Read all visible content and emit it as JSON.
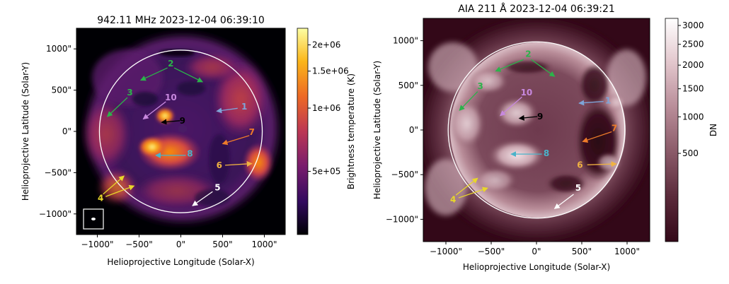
{
  "chart_data": [
    {
      "type": "heatmap",
      "title": "942.11 MHz 2023-12-04 06:39:10",
      "xlabel": "Helioprojective Longitude (Solar-X)",
      "ylabel": "Helioprojective Latitude (Solar-Y)",
      "xlim": [
        -1250,
        1250
      ],
      "ylim": [
        -1250,
        1250
      ],
      "xticks": [
        -1000,
        -500,
        0,
        500,
        1000
      ],
      "xtick_labels": [
        "−1000\"",
        "−500\"",
        "0\"",
        "500\"",
        "1000\""
      ],
      "yticks": [
        1000,
        500,
        0,
        -500,
        -1000
      ],
      "ytick_labels": [
        "1000\"",
        "500\"",
        "0\"",
        "−500\"",
        "−1000\""
      ],
      "colorbar": {
        "label": "Brightness temperature (K)",
        "scale": "log",
        "range": [
          250000,
          2400000
        ],
        "ticks": [
          2000000,
          1500000,
          1000000,
          500000
        ],
        "tick_labels": [
          "2e+06",
          "1.5e+06",
          "1e+06",
          "5e+05"
        ],
        "colors": [
          "#000004",
          "#320a5e",
          "#781c6d",
          "#bc3754",
          "#ed6925",
          "#fbb61a",
          "#fcffa4"
        ]
      },
      "limb_radius_arcsec": 975,
      "annotations": [
        {
          "label": "1",
          "color": "#7ea4d8",
          "text_xy": [
            760,
            300
          ],
          "arrows": [
            {
              "from": [
                680,
                280
              ],
              "to": [
                430,
                245
              ]
            }
          ]
        },
        {
          "label": "2",
          "color": "#2bb34a",
          "text_xy": [
            -120,
            820
          ],
          "arrows": [
            {
              "from": [
                -160,
                770
              ],
              "to": [
                -480,
                620
              ]
            },
            {
              "from": [
                -80,
                770
              ],
              "to": [
                260,
                600
              ]
            }
          ]
        },
        {
          "label": "3",
          "color": "#2bb34a",
          "text_xy": [
            -610,
            470
          ],
          "arrows": [
            {
              "from": [
                -640,
                410
              ],
              "to": [
                -880,
                180
              ]
            }
          ]
        },
        {
          "label": "4",
          "color": "#e8d72a",
          "text_xy": [
            -960,
            -810
          ],
          "arrows": [
            {
              "from": [
                -930,
                -760
              ],
              "to": [
                -680,
                -540
              ]
            },
            {
              "from": [
                -900,
                -790
              ],
              "to": [
                -560,
                -660
              ]
            }
          ]
        },
        {
          "label": "5",
          "color": "#ffffff",
          "text_xy": [
            440,
            -680
          ],
          "arrows": [
            {
              "from": [
                380,
                -730
              ],
              "to": [
                140,
                -900
              ]
            }
          ]
        },
        {
          "label": "6",
          "color": "#f0b341",
          "text_xy": [
            460,
            -410
          ],
          "arrows": [
            {
              "from": [
                530,
                -410
              ],
              "to": [
                850,
                -390
              ]
            }
          ]
        },
        {
          "label": "7",
          "color": "#ee7b2a",
          "text_xy": [
            850,
            -10
          ],
          "arrows": [
            {
              "from": [
                820,
                -50
              ],
              "to": [
                500,
                -150
              ]
            }
          ]
        },
        {
          "label": "8",
          "color": "#4ab3c9",
          "text_xy": [
            110,
            -270
          ],
          "arrows": [
            {
              "from": [
                60,
                -290
              ],
              "to": [
                -300,
                -290
              ]
            }
          ]
        },
        {
          "label": "9",
          "color": "#000000",
          "text_xy": [
            20,
            130
          ],
          "arrows": [
            {
              "from": [
                -10,
                130
              ],
              "to": [
                -230,
                110
              ]
            }
          ]
        },
        {
          "label": "10",
          "color": "#c788de",
          "text_xy": [
            -120,
            410
          ],
          "arrows": [
            {
              "from": [
                -180,
                360
              ],
              "to": [
                -450,
                150
              ]
            }
          ]
        }
      ]
    },
    {
      "type": "heatmap",
      "title": "AIA 211 Å 2023-12-04 06:39:21",
      "xlabel": "Helioprojective Longitude (Solar-X)",
      "ylabel": "Helioprojective Latitude (Solar-Y)",
      "xlim": [
        -1250,
        1250
      ],
      "ylim": [
        -1250,
        1250
      ],
      "xticks": [
        -1000,
        -500,
        0,
        500,
        1000
      ],
      "xtick_labels": [
        "−1000\"",
        "−500\"",
        "0\"",
        "500\"",
        "1000\""
      ],
      "yticks": [
        1000,
        500,
        0,
        -500,
        -1000
      ],
      "ytick_labels": [
        "1000\"",
        "500\"",
        "0\"",
        "−500\"",
        "−1000\""
      ],
      "colorbar": {
        "label": "DN",
        "scale": "sqrt",
        "range": [
          0,
          3200
        ],
        "ticks": [
          3000,
          2500,
          2000,
          1500,
          1000,
          500
        ],
        "tick_labels": [
          "3000",
          "2500",
          "2000",
          "1500",
          "1000",
          "500"
        ],
        "colors": [
          "#330818",
          "#5a2a3a",
          "#8a5a68",
          "#b88c98",
          "#e2c6cc",
          "#ffffff"
        ]
      },
      "limb_radius_arcsec": 975,
      "annotations": [
        {
          "label": "1",
          "color": "#7ea4d8",
          "text_xy": [
            790,
            330
          ],
          "arrows": [
            {
              "from": [
                740,
                320
              ],
              "to": [
                470,
                300
              ]
            }
          ]
        },
        {
          "label": "2",
          "color": "#2bb34a",
          "text_xy": [
            -90,
            850
          ],
          "arrows": [
            {
              "from": [
                -140,
                790
              ],
              "to": [
                -450,
                660
              ]
            },
            {
              "from": [
                -60,
                790
              ],
              "to": [
                200,
                600
              ]
            }
          ]
        },
        {
          "label": "3",
          "color": "#2bb34a",
          "text_xy": [
            -620,
            490
          ],
          "arrows": [
            {
              "from": [
                -650,
                430
              ],
              "to": [
                -850,
                220
              ]
            }
          ]
        },
        {
          "label": "4",
          "color": "#e8d72a",
          "text_xy": [
            -920,
            -780
          ],
          "arrows": [
            {
              "from": [
                -890,
                -730
              ],
              "to": [
                -650,
                -540
              ]
            },
            {
              "from": [
                -860,
                -760
              ],
              "to": [
                -540,
                -650
              ]
            }
          ]
        },
        {
          "label": "5",
          "color": "#ffffff",
          "text_xy": [
            460,
            -650
          ],
          "arrows": [
            {
              "from": [
                410,
                -720
              ],
              "to": [
                200,
                -880
              ]
            }
          ]
        },
        {
          "label": "6",
          "color": "#f0b341",
          "text_xy": [
            480,
            -390
          ],
          "arrows": [
            {
              "from": [
                560,
                -390
              ],
              "to": [
                880,
                -380
              ]
            }
          ]
        },
        {
          "label": "7",
          "color": "#ee7b2a",
          "text_xy": [
            860,
            20
          ],
          "arrows": [
            {
              "from": [
                830,
                -20
              ],
              "to": [
                510,
                -130
              ]
            }
          ]
        },
        {
          "label": "8",
          "color": "#4ab3c9",
          "text_xy": [
            110,
            -260
          ],
          "arrows": [
            {
              "from": [
                60,
                -270
              ],
              "to": [
                -280,
                -270
              ]
            }
          ]
        },
        {
          "label": "9",
          "color": "#000000",
          "text_xy": [
            40,
            150
          ],
          "arrows": [
            {
              "from": [
                10,
                150
              ],
              "to": [
                -190,
                130
              ]
            }
          ]
        },
        {
          "label": "10",
          "color": "#c788de",
          "text_xy": [
            -110,
            420
          ],
          "arrows": [
            {
              "from": [
                -160,
                370
              ],
              "to": [
                -400,
                160
              ]
            }
          ]
        }
      ]
    }
  ]
}
